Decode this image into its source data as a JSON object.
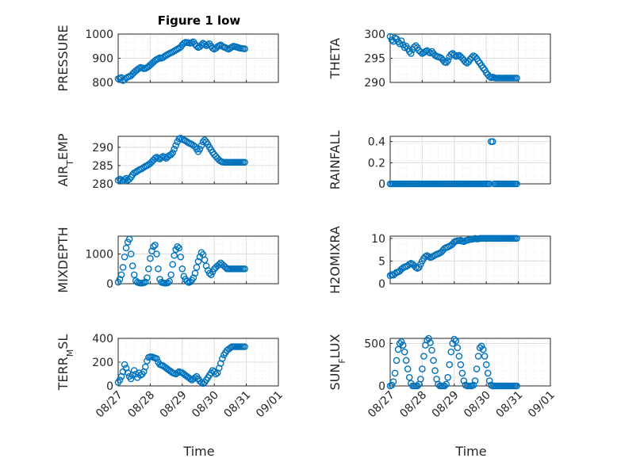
{
  "figure_title": "Figure 1 low",
  "marker_color": "#0072BD",
  "chart_data": [
    {
      "type": "scatter",
      "ylabel": "PRESSURE",
      "ylim": [
        800,
        1000
      ],
      "yticks": [
        800,
        900,
        1000
      ],
      "xlim": [
        0,
        5
      ],
      "x": [
        0.0,
        0.05,
        0.1,
        0.15,
        0.2,
        0.25,
        0.3,
        0.35,
        0.4,
        0.45,
        0.5,
        0.55,
        0.6,
        0.65,
        0.7,
        0.75,
        0.8,
        0.85,
        0.9,
        0.95,
        1.0,
        1.05,
        1.1,
        1.15,
        1.2,
        1.25,
        1.3,
        1.35,
        1.4,
        1.45,
        1.5,
        1.55,
        1.6,
        1.65,
        1.7,
        1.75,
        1.8,
        1.85,
        1.9,
        1.95,
        2.0,
        2.05,
        2.1,
        2.15,
        2.2,
        2.25,
        2.3,
        2.35,
        2.4,
        2.45,
        2.5,
        2.55,
        2.6,
        2.65,
        2.7,
        2.75,
        2.8,
        2.85,
        2.9,
        2.95,
        3.0,
        3.05,
        3.1,
        3.15,
        3.2,
        3.25,
        3.3,
        3.35,
        3.4,
        3.45,
        3.5,
        3.55,
        3.6,
        3.65,
        3.7,
        3.75,
        3.8,
        3.85,
        3.9,
        3.95
      ],
      "y": [
        815,
        818,
        820,
        808,
        812,
        818,
        822,
        825,
        828,
        835,
        842,
        848,
        853,
        858,
        862,
        860,
        857,
        858,
        862,
        866,
        872,
        878,
        884,
        890,
        895,
        898,
        902,
        900,
        903,
        908,
        912,
        916,
        920,
        923,
        926,
        930,
        934,
        938,
        942,
        946,
        955,
        962,
        966,
        965,
        964,
        962,
        965,
        968,
        958,
        950,
        945,
        948,
        955,
        962,
        958,
        952,
        956,
        960,
        950,
        942,
        938,
        942,
        948,
        952,
        955,
        950,
        946,
        944,
        940,
        938,
        942,
        946,
        950,
        948,
        946,
        944,
        942,
        941,
        940,
        939
      ],
      "xtick_labels": []
    },
    {
      "type": "scatter",
      "ylabel": "THETA",
      "ylim": [
        290,
        300
      ],
      "yticks": [
        290,
        295,
        300
      ],
      "xlim": [
        0,
        5
      ],
      "x": [
        0.0,
        0.05,
        0.1,
        0.15,
        0.2,
        0.25,
        0.3,
        0.35,
        0.4,
        0.45,
        0.5,
        0.55,
        0.6,
        0.65,
        0.7,
        0.75,
        0.8,
        0.85,
        0.9,
        0.95,
        1.0,
        1.05,
        1.1,
        1.15,
        1.2,
        1.25,
        1.3,
        1.35,
        1.4,
        1.45,
        1.5,
        1.55,
        1.6,
        1.65,
        1.7,
        1.75,
        1.8,
        1.85,
        1.9,
        1.95,
        2.0,
        2.05,
        2.1,
        2.15,
        2.2,
        2.25,
        2.3,
        2.35,
        2.4,
        2.45,
        2.5,
        2.55,
        2.6,
        2.65,
        2.7,
        2.75,
        2.8,
        2.85,
        2.9,
        2.95,
        3.0,
        3.05,
        3.1,
        3.15,
        3.2,
        3.25,
        3.3,
        3.35,
        3.4,
        3.45,
        3.5,
        3.55,
        3.6,
        3.65,
        3.7,
        3.75,
        3.8,
        3.85,
        3.9,
        3.95
      ],
      "y": [
        299.5,
        298.8,
        298.5,
        299.2,
        299.0,
        298.4,
        298.0,
        298.6,
        297.8,
        297.2,
        297.5,
        297.0,
        296.4,
        296.0,
        296.8,
        297.3,
        297.6,
        297.2,
        296.6,
        296.3,
        296.0,
        296.2,
        296.4,
        296.6,
        296.3,
        296.1,
        296.4,
        296.0,
        295.6,
        295.4,
        295.3,
        295.2,
        295.0,
        294.6,
        294.2,
        294.1,
        294.5,
        295.3,
        295.8,
        296.0,
        295.7,
        295.4,
        295.5,
        295.6,
        295.3,
        295.0,
        294.6,
        294.2,
        294.0,
        294.3,
        294.8,
        295.2,
        295.5,
        295.3,
        294.9,
        294.4,
        294.0,
        293.5,
        293.0,
        292.6,
        292.0,
        291.6,
        291.2,
        291.0,
        291.1,
        291.0,
        290.9,
        290.9,
        290.9,
        290.9,
        290.9,
        290.9,
        290.9,
        290.9,
        290.9,
        290.9,
        290.9,
        290.9,
        290.9,
        290.9
      ],
      "xtick_labels": []
    },
    {
      "type": "scatter",
      "ylabel": "AIR_TEMP",
      "ylim": [
        280,
        293
      ],
      "yticks": [
        280,
        285,
        290
      ],
      "xlim": [
        0,
        5
      ],
      "x": [
        0.0,
        0.05,
        0.1,
        0.15,
        0.2,
        0.25,
        0.3,
        0.35,
        0.4,
        0.45,
        0.5,
        0.55,
        0.6,
        0.65,
        0.7,
        0.75,
        0.8,
        0.85,
        0.9,
        0.95,
        1.0,
        1.05,
        1.1,
        1.15,
        1.2,
        1.25,
        1.3,
        1.35,
        1.4,
        1.45,
        1.5,
        1.55,
        1.6,
        1.65,
        1.7,
        1.75,
        1.8,
        1.85,
        1.9,
        1.95,
        2.0,
        2.05,
        2.1,
        2.15,
        2.2,
        2.25,
        2.3,
        2.35,
        2.4,
        2.45,
        2.5,
        2.55,
        2.6,
        2.65,
        2.7,
        2.75,
        2.8,
        2.85,
        2.9,
        2.95,
        3.0,
        3.05,
        3.1,
        3.15,
        3.2,
        3.25,
        3.3,
        3.35,
        3.4,
        3.45,
        3.5,
        3.55,
        3.6,
        3.65,
        3.7,
        3.75,
        3.8,
        3.85,
        3.9,
        3.95
      ],
      "y": [
        281.0,
        281.3,
        281.0,
        280.8,
        281.2,
        281.5,
        281.0,
        281.3,
        281.8,
        282.5,
        283.0,
        283.2,
        283.5,
        283.8,
        284.0,
        284.2,
        284.5,
        284.8,
        285.0,
        285.3,
        285.6,
        286.0,
        286.5,
        287.0,
        287.3,
        287.0,
        286.8,
        287.2,
        287.5,
        287.3,
        287.0,
        287.4,
        287.8,
        288.0,
        288.5,
        289.5,
        290.5,
        291.5,
        292.3,
        292.5,
        292.2,
        292.0,
        291.8,
        291.5,
        291.2,
        291.0,
        290.8,
        290.5,
        290.2,
        289.5,
        288.8,
        289.5,
        290.5,
        291.5,
        292.0,
        291.5,
        290.8,
        290.0,
        289.3,
        288.6,
        288.0,
        287.5,
        287.0,
        286.5,
        286.2,
        286.0,
        285.9,
        285.9,
        285.9,
        285.9,
        285.9,
        285.9,
        285.9,
        285.9,
        285.9,
        285.9,
        285.9,
        285.9,
        285.9,
        285.9
      ],
      "xtick_labels": []
    },
    {
      "type": "scatter",
      "ylabel": "RAINFALL",
      "ylim": [
        0,
        0.45
      ],
      "yticks": [
        0,
        0.2,
        0.4
      ],
      "xlim": [
        0,
        5
      ],
      "x": [
        0.0,
        0.05,
        0.1,
        0.15,
        0.2,
        0.25,
        0.3,
        0.35,
        0.4,
        0.45,
        0.5,
        0.55,
        0.6,
        0.65,
        0.7,
        0.75,
        0.8,
        0.85,
        0.9,
        0.95,
        1.0,
        1.05,
        1.1,
        1.15,
        1.2,
        1.25,
        1.3,
        1.35,
        1.4,
        1.45,
        1.5,
        1.55,
        1.6,
        1.65,
        1.7,
        1.75,
        1.8,
        1.85,
        1.9,
        1.95,
        2.0,
        2.05,
        2.1,
        2.15,
        2.2,
        2.25,
        2.3,
        2.35,
        2.4,
        2.45,
        2.5,
        2.55,
        2.6,
        2.65,
        2.7,
        2.75,
        2.8,
        2.85,
        2.9,
        2.95,
        3.0,
        3.05,
        3.1,
        3.15,
        3.2,
        3.25,
        3.3,
        3.35,
        3.4,
        3.45,
        3.5,
        3.55,
        3.6,
        3.65,
        3.7,
        3.75,
        3.8,
        3.85,
        3.9,
        3.95
      ],
      "y": [
        0,
        0,
        0,
        0,
        0,
        0,
        0,
        0,
        0,
        0,
        0,
        0,
        0,
        0,
        0,
        0,
        0,
        0,
        0,
        0,
        0,
        0,
        0,
        0,
        0,
        0,
        0,
        0,
        0,
        0,
        0,
        0,
        0,
        0,
        0,
        0,
        0,
        0,
        0,
        0,
        0,
        0,
        0,
        0,
        0,
        0,
        0,
        0,
        0,
        0,
        0,
        0,
        0,
        0,
        0,
        0,
        0,
        0,
        0,
        0,
        0,
        0,
        0,
        0.4,
        0.4,
        0,
        0,
        0,
        0,
        0,
        0,
        0,
        0,
        0,
        0,
        0,
        0,
        0,
        0,
        0
      ],
      "xtick_labels": []
    },
    {
      "type": "scatter",
      "ylabel": "MIXDEPTH",
      "ylim": [
        0,
        1600
      ],
      "yticks": [
        0,
        1000
      ],
      "xlim": [
        0,
        5
      ],
      "x": [
        0.0,
        0.05,
        0.1,
        0.15,
        0.2,
        0.25,
        0.3,
        0.35,
        0.4,
        0.45,
        0.5,
        0.55,
        0.6,
        0.65,
        0.7,
        0.75,
        0.8,
        0.85,
        0.9,
        0.95,
        1.0,
        1.05,
        1.1,
        1.15,
        1.2,
        1.25,
        1.3,
        1.35,
        1.4,
        1.45,
        1.5,
        1.55,
        1.6,
        1.65,
        1.7,
        1.75,
        1.8,
        1.85,
        1.9,
        1.95,
        2.0,
        2.05,
        2.1,
        2.15,
        2.2,
        2.25,
        2.3,
        2.35,
        2.4,
        2.45,
        2.5,
        2.55,
        2.6,
        2.65,
        2.7,
        2.75,
        2.8,
        2.85,
        2.9,
        2.95,
        3.0,
        3.05,
        3.1,
        3.15,
        3.2,
        3.25,
        3.3,
        3.35,
        3.4,
        3.45,
        3.5,
        3.55,
        3.6,
        3.65,
        3.7,
        3.75,
        3.8,
        3.85,
        3.9,
        3.95
      ],
      "y": [
        50,
        150,
        300,
        550,
        900,
        1200,
        1400,
        1500,
        1000,
        600,
        300,
        100,
        50,
        30,
        20,
        20,
        30,
        60,
        200,
        500,
        850,
        1100,
        1250,
        1300,
        1000,
        500,
        150,
        50,
        30,
        20,
        20,
        30,
        80,
        300,
        650,
        950,
        1150,
        1250,
        1200,
        900,
        500,
        250,
        150,
        80,
        40,
        60,
        120,
        200,
        350,
        550,
        750,
        900,
        1050,
        980,
        800,
        600,
        450,
        350,
        300,
        400,
        500,
        550,
        600,
        650,
        700,
        650,
        600,
        550,
        500,
        500,
        500,
        500,
        500,
        500,
        500,
        500,
        500,
        500,
        500,
        500
      ],
      "xtick_labels": []
    },
    {
      "type": "scatter",
      "ylabel": "H2OMIXRA",
      "ylim": [
        0,
        10.5
      ],
      "yticks": [
        0,
        5,
        10
      ],
      "xlim": [
        0,
        5
      ],
      "x": [
        0.0,
        0.05,
        0.1,
        0.15,
        0.2,
        0.25,
        0.3,
        0.35,
        0.4,
        0.45,
        0.5,
        0.55,
        0.6,
        0.65,
        0.7,
        0.75,
        0.8,
        0.85,
        0.9,
        0.95,
        1.0,
        1.05,
        1.1,
        1.15,
        1.2,
        1.25,
        1.3,
        1.35,
        1.4,
        1.45,
        1.5,
        1.55,
        1.6,
        1.65,
        1.7,
        1.75,
        1.8,
        1.85,
        1.9,
        1.95,
        2.0,
        2.05,
        2.1,
        2.15,
        2.2,
        2.25,
        2.3,
        2.35,
        2.4,
        2.45,
        2.5,
        2.55,
        2.6,
        2.65,
        2.7,
        2.75,
        2.8,
        2.85,
        2.9,
        2.95,
        3.0,
        3.05,
        3.1,
        3.15,
        3.2,
        3.25,
        3.3,
        3.35,
        3.4,
        3.45,
        3.5,
        3.55,
        3.6,
        3.65,
        3.7,
        3.75,
        3.8,
        3.85,
        3.9,
        3.95
      ],
      "y": [
        1.8,
        2.0,
        1.9,
        2.2,
        2.5,
        2.6,
        2.8,
        3.2,
        3.5,
        3.7,
        3.8,
        4.0,
        4.3,
        4.5,
        4.3,
        4.0,
        3.6,
        3.4,
        3.6,
        4.3,
        5.0,
        5.6,
        6.0,
        6.2,
        6.0,
        5.8,
        5.9,
        6.1,
        6.3,
        6.5,
        6.6,
        6.8,
        7.0,
        7.4,
        7.8,
        8.0,
        8.1,
        8.3,
        8.5,
        8.8,
        9.2,
        9.4,
        9.5,
        9.5,
        9.6,
        9.4,
        9.3,
        9.5,
        9.6,
        9.7,
        9.8,
        9.8,
        9.9,
        10.0,
        9.9,
        9.9,
        10.0,
        10.0,
        10.0,
        10.0,
        10.0,
        10.0,
        10.0,
        10.0,
        10.0,
        10.0,
        10.0,
        10.0,
        10.0,
        10.0,
        10.0,
        10.0,
        10.0,
        10.0,
        10.0,
        10.0,
        10.0,
        10.0,
        10.0,
        10.0
      ],
      "xtick_labels": []
    },
    {
      "type": "scatter",
      "ylabel": "TERR_MSL",
      "ylim": [
        0,
        400
      ],
      "yticks": [
        0,
        200,
        400
      ],
      "xlim": [
        0,
        5
      ],
      "x": [
        0.0,
        0.05,
        0.1,
        0.15,
        0.2,
        0.25,
        0.3,
        0.35,
        0.4,
        0.45,
        0.5,
        0.55,
        0.6,
        0.65,
        0.7,
        0.75,
        0.8,
        0.85,
        0.9,
        0.95,
        1.0,
        1.05,
        1.1,
        1.15,
        1.2,
        1.25,
        1.3,
        1.35,
        1.4,
        1.45,
        1.5,
        1.55,
        1.6,
        1.65,
        1.7,
        1.75,
        1.8,
        1.85,
        1.9,
        1.95,
        2.0,
        2.05,
        2.1,
        2.15,
        2.2,
        2.25,
        2.3,
        2.35,
        2.4,
        2.45,
        2.5,
        2.55,
        2.6,
        2.65,
        2.7,
        2.75,
        2.8,
        2.85,
        2.9,
        2.95,
        3.0,
        3.05,
        3.1,
        3.15,
        3.2,
        3.25,
        3.3,
        3.35,
        3.4,
        3.45,
        3.5,
        3.55,
        3.6,
        3.65,
        3.7,
        3.75,
        3.8,
        3.85,
        3.9,
        3.95
      ],
      "y": [
        30,
        50,
        80,
        120,
        180,
        150,
        110,
        80,
        60,
        90,
        130,
        100,
        70,
        110,
        90,
        100,
        120,
        160,
        210,
        240,
        245,
        245,
        240,
        235,
        230,
        200,
        180,
        175,
        170,
        160,
        150,
        140,
        130,
        120,
        110,
        105,
        100,
        110,
        120,
        115,
        110,
        100,
        90,
        80,
        70,
        60,
        50,
        60,
        70,
        80,
        60,
        40,
        30,
        20,
        30,
        50,
        70,
        90,
        110,
        130,
        120,
        100,
        110,
        150,
        190,
        230,
        260,
        280,
        300,
        310,
        320,
        330,
        330,
        330,
        330,
        330,
        330,
        330,
        330,
        330
      ],
      "xtick_labels": [
        "08/27",
        "08/28",
        "08/29",
        "08/30",
        "08/31",
        "09/01"
      ]
    },
    {
      "type": "scatter",
      "ylabel": "SUN_FLUX",
      "ylim": [
        0,
        560
      ],
      "yticks": [
        0,
        500
      ],
      "xlim": [
        0,
        5
      ],
      "x": [
        0.0,
        0.05,
        0.1,
        0.15,
        0.2,
        0.25,
        0.3,
        0.35,
        0.4,
        0.45,
        0.5,
        0.55,
        0.6,
        0.65,
        0.7,
        0.75,
        0.8,
        0.85,
        0.9,
        0.95,
        1.0,
        1.05,
        1.1,
        1.15,
        1.2,
        1.25,
        1.3,
        1.35,
        1.4,
        1.45,
        1.5,
        1.55,
        1.6,
        1.65,
        1.7,
        1.75,
        1.8,
        1.85,
        1.9,
        1.95,
        2.0,
        2.05,
        2.1,
        2.15,
        2.2,
        2.25,
        2.3,
        2.35,
        2.4,
        2.45,
        2.5,
        2.55,
        2.6,
        2.65,
        2.7,
        2.75,
        2.8,
        2.85,
        2.9,
        2.95,
        3.0,
        3.05,
        3.1,
        3.15,
        3.2,
        3.25,
        3.3,
        3.35,
        3.4,
        3.45,
        3.5,
        3.55,
        3.6,
        3.65,
        3.7,
        3.75,
        3.8,
        3.85,
        3.9,
        3.95
      ],
      "y": [
        0,
        10,
        50,
        150,
        300,
        430,
        500,
        520,
        480,
        400,
        300,
        200,
        100,
        30,
        0,
        0,
        0,
        0,
        20,
        80,
        200,
        350,
        480,
        540,
        560,
        510,
        420,
        300,
        180,
        80,
        20,
        0,
        0,
        0,
        0,
        20,
        100,
        250,
        400,
        500,
        550,
        530,
        450,
        350,
        250,
        150,
        60,
        10,
        0,
        0,
        0,
        0,
        10,
        60,
        200,
        350,
        450,
        470,
        430,
        350,
        250,
        150,
        60,
        10,
        0,
        0,
        0,
        0,
        0,
        0,
        0,
        0,
        0,
        0,
        0,
        0,
        0,
        0,
        0,
        0
      ],
      "xtick_labels": [
        "08/27",
        "08/28",
        "08/29",
        "08/30",
        "08/31",
        "09/01"
      ]
    }
  ],
  "xlabel_left": "Time",
  "xlabel_right": "Time"
}
